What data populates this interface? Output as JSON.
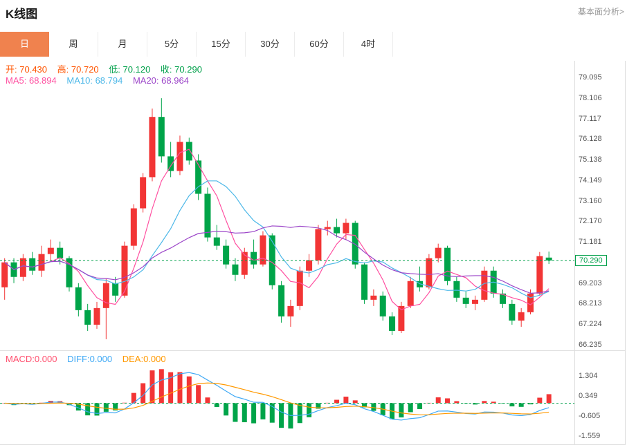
{
  "header": {
    "title": "K线图",
    "link": "基本面分析>"
  },
  "tabs": [
    {
      "label": "日",
      "name": "tab-day",
      "active": true
    },
    {
      "label": "周",
      "name": "tab-week"
    },
    {
      "label": "月",
      "name": "tab-month"
    },
    {
      "label": "5分",
      "name": "tab-5min"
    },
    {
      "label": "15分",
      "name": "tab-15min"
    },
    {
      "label": "30分",
      "name": "tab-30min"
    },
    {
      "label": "60分",
      "name": "tab-60min"
    },
    {
      "label": "4时",
      "name": "tab-4hour"
    }
  ],
  "legend": {
    "open": {
      "label": "开:",
      "value": "70.430"
    },
    "high": {
      "label": "高:",
      "value": "70.720"
    },
    "low": {
      "label": "低:",
      "value": "70.120"
    },
    "close": {
      "label": "收:",
      "value": "70.290"
    },
    "ma5": {
      "label": "MA5:",
      "value": "68.894"
    },
    "ma10": {
      "label": "MA10:",
      "value": "68.794"
    },
    "ma20": {
      "label": "MA20:",
      "value": "68.964"
    },
    "macd": {
      "label": "MACD:",
      "value": "0.000"
    },
    "diff": {
      "label": "DIFF:",
      "value": "0.000"
    },
    "dea": {
      "label": "DEA:",
      "value": "0.000"
    }
  },
  "price": {
    "current": "70.290"
  },
  "colors": {
    "up": "#f23535",
    "down": "#00a449",
    "ma5": "#ff4fa0",
    "ma10": "#4db8e8",
    "ma20": "#9b44c8",
    "diff": "#3fa9f5",
    "dea": "#ff9900",
    "macd_legend": "#ff4f6e",
    "tab_active_bg": "#f0824e",
    "price_line": "#00a04a",
    "axis_text": "#555555",
    "border": "#dddddd",
    "link": "#999999",
    "ohlc_up_text": "#ff5400",
    "ohlc_down_text": "#00a04a"
  },
  "chart_data": {
    "type": "candlestick",
    "title": "K线图",
    "period": "日",
    "candle_format": [
      "open",
      "high",
      "low",
      "close"
    ],
    "candles": [
      [
        69.0,
        70.4,
        68.4,
        70.2
      ],
      [
        70.2,
        70.4,
        69.2,
        69.5
      ],
      [
        69.5,
        70.6,
        69.3,
        70.4
      ],
      [
        70.4,
        70.7,
        69.6,
        69.8
      ],
      [
        69.8,
        71.0,
        69.5,
        70.6
      ],
      [
        70.6,
        71.3,
        70.3,
        70.9
      ],
      [
        70.9,
        71.2,
        70.1,
        70.4
      ],
      [
        70.4,
        70.5,
        68.8,
        69.0
      ],
      [
        69.0,
        69.2,
        67.6,
        67.9
      ],
      [
        67.9,
        68.2,
        66.9,
        67.2
      ],
      [
        67.2,
        68.3,
        67.0,
        68.0
      ],
      [
        68.0,
        69.4,
        66.5,
        69.2
      ],
      [
        69.2,
        69.5,
        68.3,
        68.6
      ],
      [
        68.6,
        71.2,
        68.5,
        71.0
      ],
      [
        71.0,
        73.0,
        70.8,
        72.8
      ],
      [
        72.8,
        74.5,
        72.6,
        74.3
      ],
      [
        74.3,
        77.6,
        74.1,
        77.2
      ],
      [
        77.2,
        78.1,
        75.0,
        75.3
      ],
      [
        75.3,
        76.0,
        74.3,
        74.6
      ],
      [
        74.6,
        76.3,
        74.4,
        76.0
      ],
      [
        76.0,
        76.2,
        74.9,
        75.1
      ],
      [
        75.1,
        75.4,
        73.2,
        73.5
      ],
      [
        73.5,
        73.8,
        71.2,
        71.4
      ],
      [
        71.4,
        72.0,
        70.8,
        71.0
      ],
      [
        71.0,
        71.3,
        69.9,
        70.1
      ],
      [
        70.1,
        70.4,
        69.3,
        69.6
      ],
      [
        69.6,
        70.9,
        69.4,
        70.7
      ],
      [
        70.7,
        71.3,
        69.9,
        70.1
      ],
      [
        70.1,
        71.7,
        70.0,
        71.5
      ],
      [
        71.5,
        71.6,
        68.9,
        69.1
      ],
      [
        69.1,
        69.3,
        67.3,
        67.6
      ],
      [
        67.6,
        68.4,
        67.1,
        68.1
      ],
      [
        68.1,
        70.0,
        67.9,
        69.8
      ],
      [
        69.8,
        70.6,
        69.5,
        70.3
      ],
      [
        70.3,
        72.0,
        70.1,
        71.8
      ],
      [
        71.8,
        72.2,
        71.5,
        71.9
      ],
      [
        71.9,
        72.3,
        71.4,
        71.6
      ],
      [
        71.6,
        72.3,
        71.3,
        72.1
      ],
      [
        72.1,
        72.2,
        69.9,
        70.1
      ],
      [
        70.1,
        70.2,
        68.2,
        68.4
      ],
      [
        68.4,
        68.9,
        68.1,
        68.6
      ],
      [
        68.6,
        68.8,
        67.4,
        67.6
      ],
      [
        67.6,
        67.8,
        66.7,
        66.9
      ],
      [
        66.9,
        68.3,
        66.8,
        68.1
      ],
      [
        68.1,
        69.5,
        68.0,
        69.3
      ],
      [
        69.3,
        70.0,
        68.8,
        69.0
      ],
      [
        69.0,
        70.6,
        68.9,
        70.4
      ],
      [
        70.4,
        71.1,
        70.2,
        70.9
      ],
      [
        70.9,
        71.0,
        69.1,
        69.3
      ],
      [
        69.3,
        69.5,
        68.3,
        68.5
      ],
      [
        68.5,
        68.8,
        68.0,
        68.2
      ],
      [
        68.2,
        68.6,
        67.9,
        68.4
      ],
      [
        68.4,
        70.0,
        68.3,
        69.8
      ],
      [
        69.8,
        70.0,
        68.5,
        68.7
      ],
      [
        68.7,
        68.9,
        68.0,
        68.2
      ],
      [
        68.2,
        68.4,
        67.2,
        67.4
      ],
      [
        67.4,
        68.0,
        67.1,
        67.8
      ],
      [
        67.8,
        68.9,
        67.7,
        68.7
      ],
      [
        68.7,
        70.7,
        68.6,
        70.5
      ],
      [
        70.43,
        70.72,
        70.12,
        70.29
      ]
    ],
    "last_candle": {
      "open": 70.43,
      "high": 70.72,
      "low": 70.12,
      "close": 70.29
    },
    "current_price": 70.29,
    "overlays": [
      {
        "name": "MA5",
        "window": 5,
        "last_value": 68.894,
        "color": "#ff4fa0"
      },
      {
        "name": "MA10",
        "window": 10,
        "last_value": 68.794,
        "color": "#4db8e8"
      },
      {
        "name": "MA20",
        "window": 20,
        "last_value": 68.964,
        "color": "#9b44c8"
      }
    ],
    "y_axis_ticks": [
      "79.095",
      "78.106",
      "77.117",
      "76.128",
      "75.138",
      "74.149",
      "73.160",
      "72.170",
      "71.181",
      "69.203",
      "68.213",
      "67.224",
      "66.235"
    ],
    "y_axis_range": [
      66.0,
      79.9
    ],
    "grid": false,
    "price_line": {
      "value": 70.29,
      "style": "dashed",
      "color": "#00a04a"
    },
    "indicator_panel": {
      "type": "MACD",
      "ticks": [
        "1.304",
        "0.349",
        "-0.605",
        "-1.559"
      ],
      "range": [
        -1.96,
        2.35
      ],
      "legend": {
        "macd": "0.000",
        "diff": "0.000",
        "dea": "0.000"
      }
    }
  }
}
